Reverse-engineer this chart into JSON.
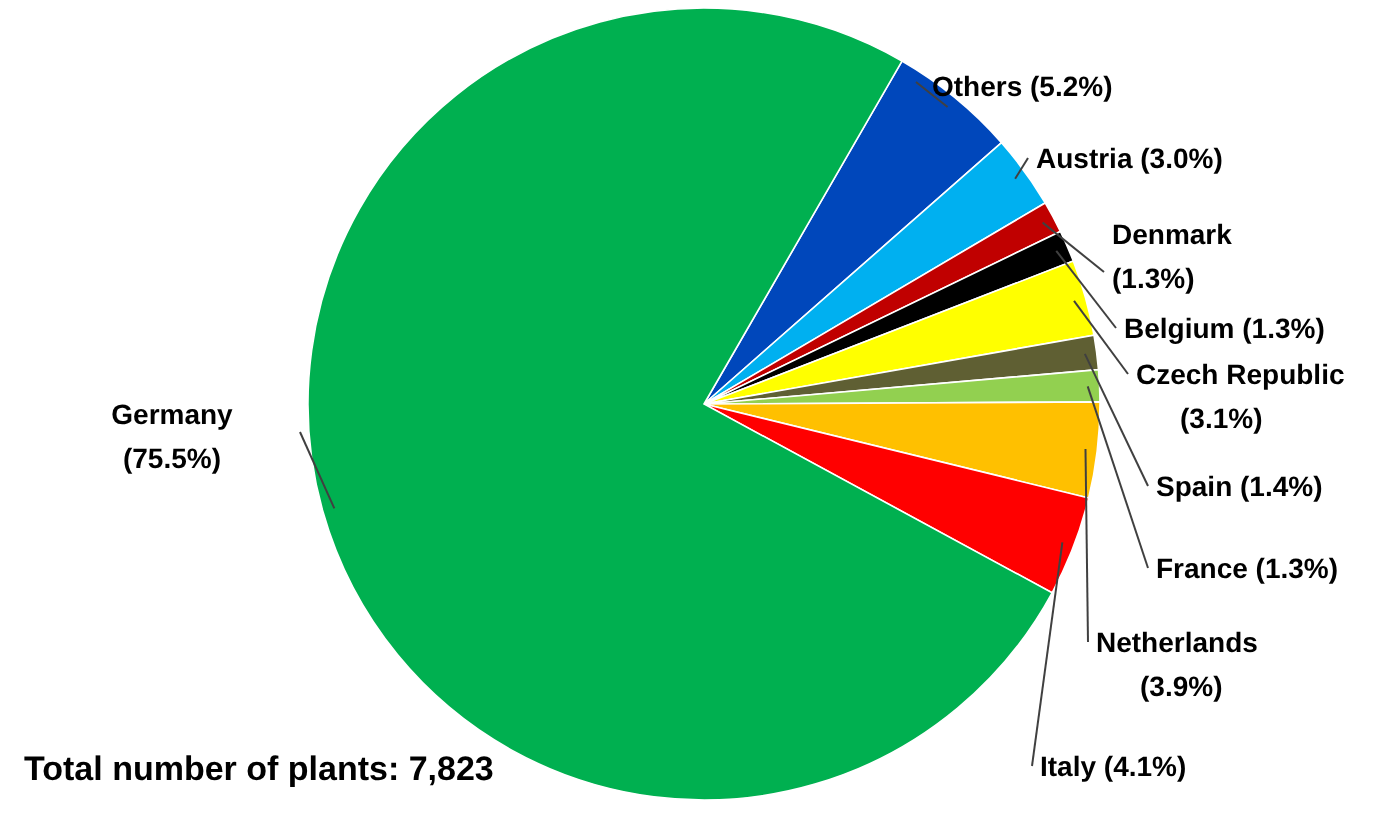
{
  "chart_data": {
    "type": "pie",
    "categories": [
      "Others",
      "Austria",
      "Denmark",
      "Belgium",
      "Czech Republic",
      "Spain",
      "France",
      "Netherlands",
      "Italy",
      "Germany"
    ],
    "values": [
      5.2,
      3.0,
      1.3,
      1.3,
      3.1,
      1.4,
      1.3,
      3.9,
      4.1,
      75.5
    ],
    "colors": [
      "#0047bb",
      "#00b0f0",
      "#c00000",
      "#000000",
      "#ffff00",
      "#5f5f33",
      "#92d050",
      "#ffc000",
      "#ff0000",
      "#00b050"
    ],
    "value_labels": [
      "(5.2%)",
      "(3.0%)",
      "(1.3%)",
      "(1.3%)",
      "(3.1%)",
      "(1.4%)",
      "(1.3%)",
      "(3.9%)",
      "(4.1%)",
      "(75.5%)"
    ],
    "annotations": [
      "Total number of plants: 7,823"
    ]
  }
}
